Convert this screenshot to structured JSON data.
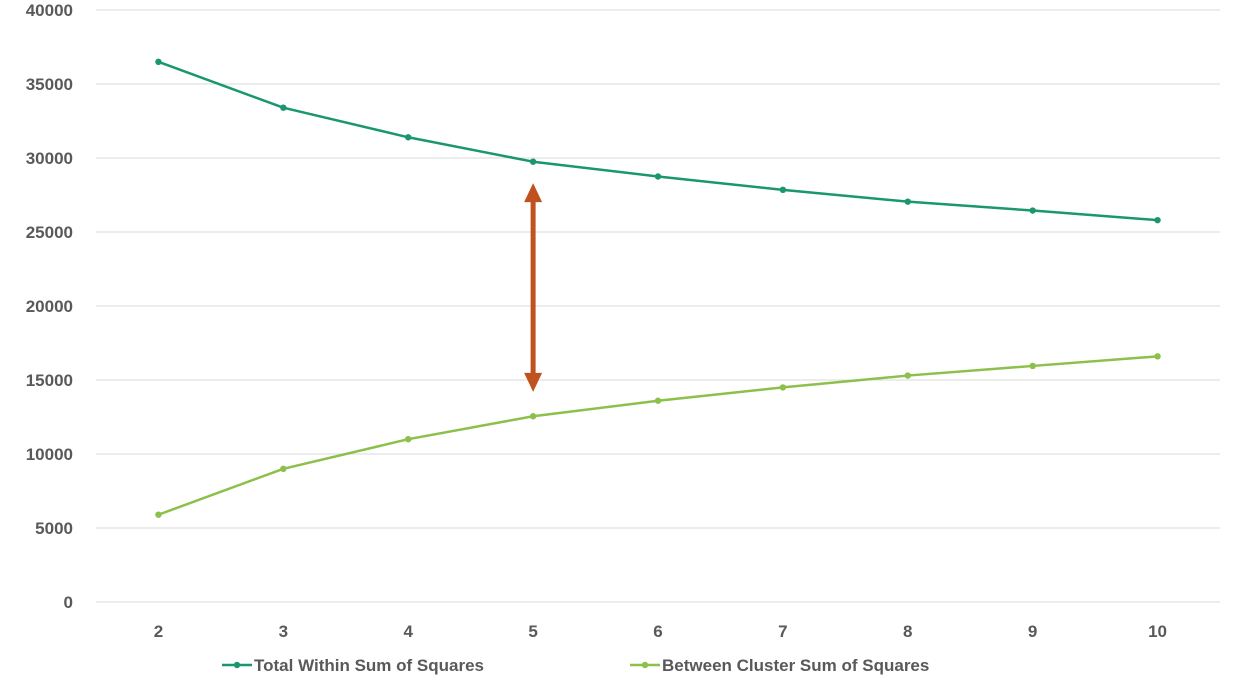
{
  "chart_data": {
    "type": "line",
    "x": [
      2,
      3,
      4,
      5,
      6,
      7,
      8,
      9,
      10
    ],
    "ylim": [
      0,
      40000
    ],
    "yticks": [
      0,
      5000,
      10000,
      15000,
      20000,
      25000,
      30000,
      35000,
      40000
    ],
    "grid": true,
    "legend_position": "bottom",
    "series": [
      {
        "name": "Total Within Sum of Squares",
        "color": "#1a9670",
        "values": [
          36500,
          33400,
          31400,
          29750,
          28750,
          27850,
          27050,
          26450,
          25800
        ]
      },
      {
        "name": "Between Cluster Sum of Squares",
        "color": "#8cc04a",
        "values": [
          5900,
          9000,
          11000,
          12550,
          13600,
          14500,
          15300,
          15950,
          16600
        ]
      }
    ],
    "annotation": {
      "type": "double-arrow",
      "color": "#c0521f",
      "x": 5,
      "y_from": 28300,
      "y_to": 14200
    }
  }
}
